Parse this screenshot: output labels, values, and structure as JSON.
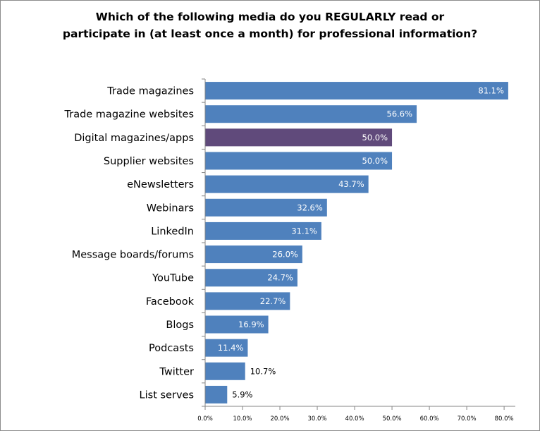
{
  "chart_data": {
    "type": "bar",
    "orientation": "horizontal",
    "title_lines": [
      "Which of the following media do you REGULARLY read or",
      "participate in (at least once a month) for professional information?"
    ],
    "categories": [
      "Trade magazines",
      "Trade magazine websites",
      "Digital magazines/apps",
      "Supplier websites",
      "eNewsletters",
      "Webinars",
      "LinkedIn",
      "Message boards/forums",
      "YouTube",
      "Facebook",
      "Blogs",
      "Podcasts",
      "Twitter",
      "List serves"
    ],
    "values": [
      81.1,
      56.6,
      50.0,
      50.0,
      43.7,
      32.6,
      31.1,
      26.0,
      24.7,
      22.7,
      16.9,
      11.4,
      10.7,
      5.9
    ],
    "value_labels": [
      "81.1%",
      "56.6%",
      "50.0%",
      "50.0%",
      "43.7%",
      "32.6%",
      "31.1%",
      "26.0%",
      "24.7%",
      "22.7%",
      "16.9%",
      "11.4%",
      "10.7%",
      "5.9%"
    ],
    "highlighted_category": "Digital magazines/apps",
    "xlim": [
      0,
      83
    ],
    "x_ticks": [
      0,
      10,
      20,
      30,
      40,
      50,
      60,
      70,
      80
    ],
    "x_tick_labels": [
      "0.0%",
      "10.0%",
      "20.0%",
      "30.0%",
      "40.0%",
      "50.0%",
      "60.0%",
      "70.0%",
      "80.0%"
    ],
    "grid": false,
    "legend": "none",
    "colors": {
      "bar": "#4f81bd",
      "highlight": "#604a7b",
      "label_inside": "#ffffff",
      "label_outside": "#000000",
      "axis": "#868686"
    }
  }
}
